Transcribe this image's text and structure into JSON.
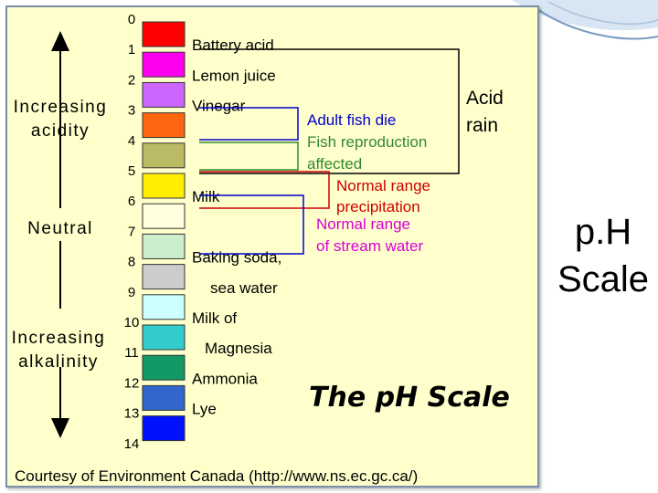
{
  "slide_title_line1": "p.H",
  "slide_title_line2": "Scale",
  "figure": {
    "axis": {
      "increasing_acidity": [
        "Increasing",
        "acidity"
      ],
      "neutral": "Neutral",
      "increasing_alkalinity": [
        "Increasing",
        "alkalinity"
      ]
    },
    "ph_numbers": [
      "0",
      "1",
      "2",
      "3",
      "4",
      "5",
      "6",
      "7",
      "8",
      "9",
      "10",
      "11",
      "12",
      "13",
      "14"
    ],
    "swatch_colors": [
      "#ff0000",
      "#ff00ee",
      "#cc66ff",
      "#ff6611",
      "#bbbb66",
      "#ffee00",
      "#ffffdd",
      "#cceecc",
      "#cccccc",
      "#ccffff",
      "#33cccc",
      "#119966",
      "#3366cc",
      "#0011ff"
    ],
    "substances": [
      {
        "label": "Battery acid",
        "ph": 1
      },
      {
        "label": "Lemon juice",
        "ph": 2
      },
      {
        "label": "Vinegar",
        "ph": 3
      },
      {
        "label": "Milk",
        "ph": 6
      },
      {
        "label": "Baking soda,",
        "ph": 8
      },
      {
        "label": "sea water",
        "ph": 9
      },
      {
        "label": "Milk of",
        "ph": 10
      },
      {
        "label": "Magnesia",
        "ph": 11
      },
      {
        "label": "Ammonia",
        "ph": 12
      },
      {
        "label": "Lye",
        "ph": 13
      }
    ],
    "ranges": {
      "adult_fish_die": "Adult fish die",
      "fish_reproduction": [
        "Fish reproduction",
        "affected"
      ],
      "normal_precipitation": [
        "Normal range",
        "precipitation"
      ],
      "normal_stream_water": [
        "Normal range",
        "of stream water"
      ],
      "acid_rain": [
        "Acid",
        "rain"
      ]
    },
    "scale_title": "The pH Scale",
    "credit": "Courtesy of Environment Canada (http://www.ns.ec.gc.ca/)"
  }
}
